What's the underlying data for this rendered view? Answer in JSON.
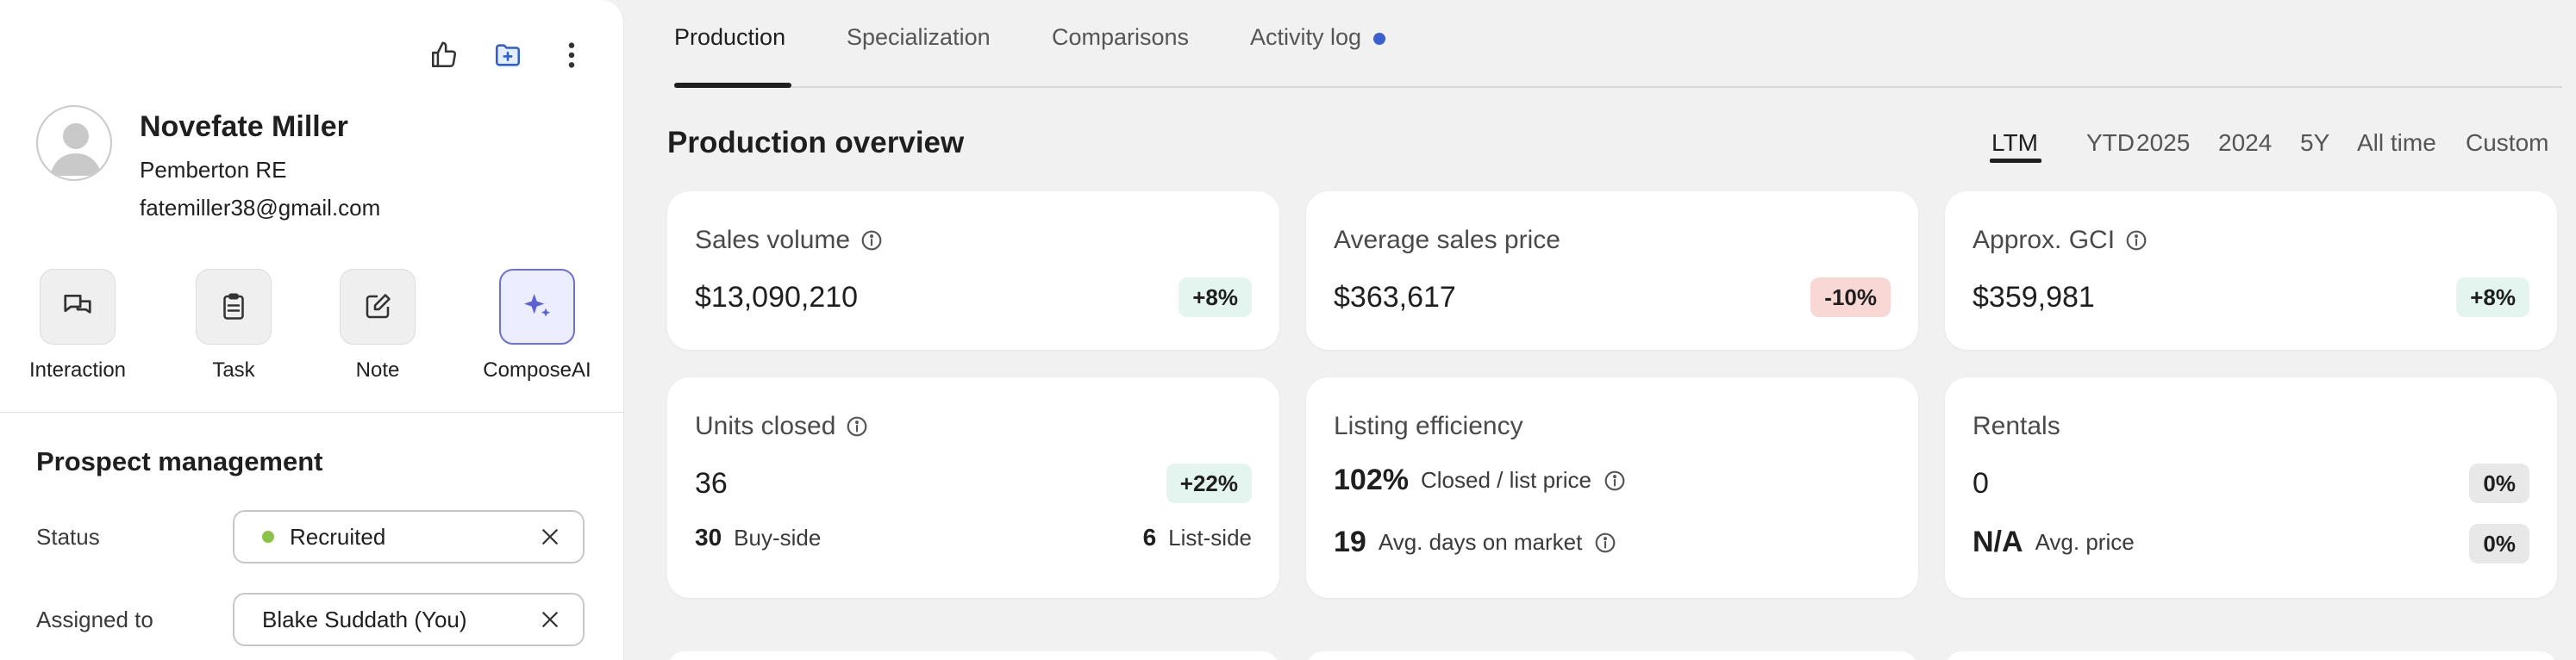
{
  "profile": {
    "name": "Novefate Miller",
    "company": "Pemberton RE",
    "email": "fatemiller38@gmail.com"
  },
  "header_actions": [
    "thumbs-up-icon",
    "folder-add-icon",
    "more-vertical-icon"
  ],
  "quick_actions": [
    {
      "label": "Interaction",
      "icon": "chat-icon"
    },
    {
      "label": "Task",
      "icon": "clipboard-icon"
    },
    {
      "label": "Note",
      "icon": "edit-note-icon"
    },
    {
      "label": "ComposeAI",
      "icon": "sparkle-icon"
    }
  ],
  "prospect": {
    "title": "Prospect management",
    "status_label": "Status",
    "status_value": "Recruited",
    "status_color": "#8bc34a",
    "assigned_label": "Assigned to",
    "assigned_value": "Blake Suddath (You)"
  },
  "tabs": {
    "production": "Production",
    "specialization": "Specialization",
    "comparisons": "Comparisons",
    "activity": "Activity log",
    "active": "Production",
    "activity_dot_color": "#3a5fd0"
  },
  "overview": {
    "title": "Production overview",
    "ranges": [
      "LTM",
      "YTD",
      "2025",
      "2024",
      "5Y",
      "All time",
      "Custom"
    ],
    "active_range": "LTM"
  },
  "cards": {
    "sales_volume": {
      "title": "Sales volume",
      "value": "$13,090,210",
      "change": "+8%"
    },
    "avg_price": {
      "title": "Average sales price",
      "value": "$363,617",
      "change": "-10%"
    },
    "gci": {
      "title": "Approx. GCI",
      "value": "$359,981",
      "change": "+8%"
    },
    "units": {
      "title": "Units closed",
      "value": "36",
      "change": "+22%",
      "buy_num": "30",
      "buy_label": "Buy-side",
      "list_num": "6",
      "list_label": "List-side"
    },
    "listing": {
      "title": "Listing efficiency",
      "value": "102%",
      "value_label": "Closed / list price",
      "days": "19",
      "days_label": "Avg. days on market"
    },
    "rentals": {
      "title": "Rentals",
      "value": "0",
      "change": "0%",
      "avg": "N/A",
      "avg_label": "Avg. price",
      "avg_change": "0%"
    }
  }
}
